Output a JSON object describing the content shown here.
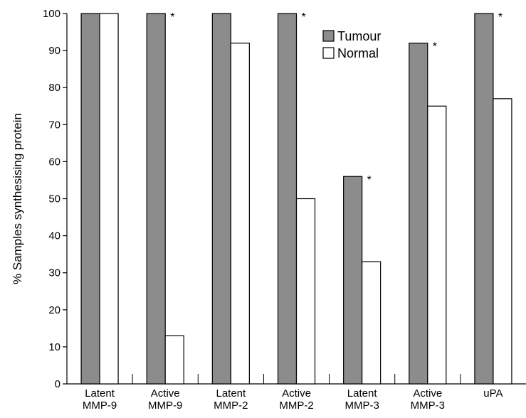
{
  "chart_data": {
    "type": "bar",
    "categories": [
      [
        "Latent",
        "MMP-9"
      ],
      [
        "Active",
        "MMP-9"
      ],
      [
        "Latent",
        "MMP-2"
      ],
      [
        "Active",
        "MMP-2"
      ],
      [
        "Latent",
        "MMP-3"
      ],
      [
        "Active",
        "MMP-3"
      ],
      [
        "uPA"
      ]
    ],
    "series": [
      {
        "name": "Tumour",
        "color": "#8c8c8c",
        "values": [
          100,
          100,
          100,
          100,
          56,
          92,
          100
        ]
      },
      {
        "name": "Normal",
        "color": "#ffffff",
        "values": [
          100,
          13,
          92,
          50,
          33,
          75,
          77
        ]
      }
    ],
    "significance_marks": [
      "",
      "*",
      "",
      "*",
      "*",
      "*",
      "*"
    ],
    "ylabel": "% Samples synthesising protein",
    "ylim": [
      0,
      100
    ],
    "yticks": [
      0,
      10,
      20,
      30,
      40,
      50,
      60,
      70,
      80,
      90,
      100
    ],
    "grid": false,
    "legend_position": "top-right"
  }
}
